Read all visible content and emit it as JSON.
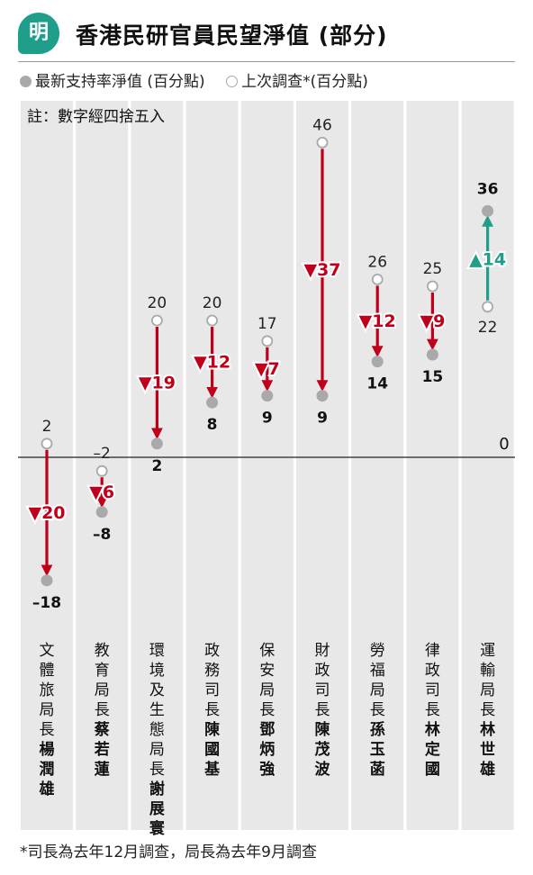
{
  "header": {
    "logo_char": "明",
    "title": "香港民研官員民望淨值 (部分)"
  },
  "legend": {
    "current_label": "最新支持率淨值 (百分點)",
    "previous_label": "上次調查*(百分點)"
  },
  "note": "註：數字經四捨五入",
  "footnote": "*司長為去年12月調查，局長為去年9月調查",
  "colors": {
    "down": "#c0001b",
    "up": "#1f9e8a",
    "dot": "#a9a9a9",
    "band": "#e8e8e8"
  },
  "chart_data": {
    "type": "scatter",
    "title": "香港民研官員民望淨值 (部分)",
    "ylim": [
      -22,
      50
    ],
    "zero_label": "0",
    "series": [
      {
        "name": "最新支持率淨值 (百分點)"
      },
      {
        "name": "上次調查*(百分點)"
      }
    ],
    "officials": [
      {
        "title": "文體旅局長",
        "name": "楊潤雄",
        "previous": 2,
        "previous_label": "2",
        "current": -18,
        "current_label": "–18",
        "change": -20,
        "change_label": "▼20"
      },
      {
        "title": "教育局長",
        "name": "蔡若蓮",
        "previous": -2,
        "previous_label": "–2",
        "current": -8,
        "current_label": "–8",
        "change": -6,
        "change_label": "▼6"
      },
      {
        "title": "環境及生態局長",
        "name": "謝展寰",
        "previous": 20,
        "previous_label": "20",
        "current": 2,
        "current_label": "2",
        "change": -19,
        "change_label": "▼19"
      },
      {
        "title": "政務司長",
        "name": "陳國基",
        "previous": 20,
        "previous_label": "20",
        "current": 8,
        "current_label": "8",
        "change": -12,
        "change_label": "▼12"
      },
      {
        "title": "保安局長",
        "name": "鄧炳強",
        "previous": 17,
        "previous_label": "17",
        "current": 9,
        "current_label": "9",
        "change": -7,
        "change_label": "▼7"
      },
      {
        "title": "財政司長",
        "name": "陳茂波",
        "previous": 46,
        "previous_label": "46",
        "current": 9,
        "current_label": "9",
        "change": -37,
        "change_label": "▼37"
      },
      {
        "title": "勞福局長",
        "name": "孫玉菡",
        "previous": 26,
        "previous_label": "26",
        "current": 14,
        "current_label": "14",
        "change": -12,
        "change_label": "▼12"
      },
      {
        "title": "律政司長",
        "name": "林定國",
        "previous": 25,
        "previous_label": "25",
        "current": 15,
        "current_label": "15",
        "change": -9,
        "change_label": "▼9"
      },
      {
        "title": "運輸局長",
        "name": "林世雄",
        "previous": 22,
        "previous_label": "22",
        "current": 36,
        "current_label": "36",
        "change": 14,
        "change_label": "▲14"
      }
    ]
  }
}
